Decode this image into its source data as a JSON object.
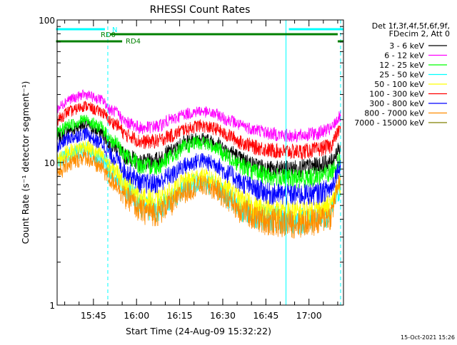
{
  "chart_data": {
    "type": "line",
    "title": "RHESSI Count Rates",
    "xlabel": "Start Time (24-Aug-09 15:32:22)",
    "ylabel": "Count Rate (s⁻¹ detector segment⁻¹)",
    "y_scale": "log",
    "ylim": [
      1,
      100
    ],
    "y_tick_labels": [
      "1",
      "10",
      "100"
    ],
    "x_range": [
      "15:32:22",
      "17:12:00"
    ],
    "x_tick_labels": [
      "15:45",
      "16:00",
      "16:15",
      "16:30",
      "16:45",
      "17:00"
    ],
    "x_ticks": [
      "15:45",
      "16:00",
      "16:15",
      "16:30",
      "16:45",
      "17:00"
    ],
    "grid": false,
    "legend_position": "right",
    "legend_header": [
      "Det 1f,3f,4f,5f,6f,9f,",
      "FDecim 2, Att 0"
    ],
    "series": [
      {
        "name": "3 - 6 keV",
        "color": "#000000",
        "x": [
          "15:32",
          "15:37",
          "15:42",
          "15:47",
          "15:52",
          "15:57",
          "16:02",
          "16:07",
          "16:12",
          "16:17",
          "16:22",
          "16:27",
          "16:32",
          "16:37",
          "16:42",
          "16:47",
          "16:52",
          "16:57",
          "17:02",
          "17:07",
          "17:11"
        ],
        "values": [
          15,
          17,
          18.5,
          16.5,
          13,
          11,
          10,
          10.5,
          12,
          14,
          14.8,
          14,
          12.2,
          10.5,
          9.5,
          9,
          9,
          9.2,
          9.5,
          10,
          12.5
        ]
      },
      {
        "name": "6 - 12 keV",
        "color": "#ff00ff",
        "x": [
          "15:32",
          "15:37",
          "15:42",
          "15:47",
          "15:52",
          "15:57",
          "16:02",
          "16:07",
          "16:12",
          "16:17",
          "16:22",
          "16:27",
          "16:32",
          "16:37",
          "16:42",
          "16:47",
          "16:52",
          "16:57",
          "17:02",
          "17:07",
          "17:11"
        ],
        "values": [
          24,
          28,
          30,
          28,
          23,
          19,
          17.5,
          18,
          20,
          22,
          23,
          22,
          20,
          18,
          17,
          16,
          15.5,
          15.5,
          16,
          17,
          21
        ]
      },
      {
        "name": "12 - 25 keV",
        "color": "#00ff00",
        "x": [
          "15:32",
          "15:37",
          "15:42",
          "15:47",
          "15:52",
          "15:57",
          "16:02",
          "16:07",
          "16:12",
          "16:17",
          "16:22",
          "16:27",
          "16:32",
          "16:37",
          "16:42",
          "16:47",
          "16:52",
          "16:57",
          "17:02",
          "17:07",
          "17:11"
        ],
        "values": [
          16,
          18.5,
          20,
          18,
          14,
          11,
          9.5,
          9.5,
          11,
          13,
          14,
          13,
          11,
          9.5,
          8.5,
          8,
          7.8,
          7.8,
          8,
          8.5,
          10.5
        ]
      },
      {
        "name": "25 - 50 keV",
        "color": "#00ffff",
        "x": [
          "15:32",
          "15:37",
          "15:42",
          "15:47",
          "15:52",
          "15:57",
          "16:02",
          "16:07",
          "16:12",
          "16:17",
          "16:22",
          "16:27",
          "16:32",
          "16:37",
          "16:42",
          "16:47",
          "16:52",
          "16:57",
          "17:02",
          "17:07",
          "17:11"
        ],
        "values": [
          10,
          11.5,
          12.5,
          11,
          8.5,
          6.5,
          5,
          4.8,
          5.6,
          6.8,
          7.4,
          7,
          5.8,
          4.8,
          4.3,
          4.1,
          4,
          4,
          4.1,
          4.4,
          6.5
        ]
      },
      {
        "name": "50 - 100 keV",
        "color": "#ffff00",
        "x": [
          "15:32",
          "15:37",
          "15:42",
          "15:47",
          "15:52",
          "15:57",
          "16:02",
          "16:07",
          "16:12",
          "16:17",
          "16:22",
          "16:27",
          "16:32",
          "16:37",
          "16:42",
          "16:47",
          "16:52",
          "16:57",
          "17:02",
          "17:07",
          "17:11"
        ],
        "values": [
          10.5,
          12,
          13,
          11.5,
          9,
          7,
          5.6,
          5.4,
          6.2,
          7.4,
          8,
          7.6,
          6.4,
          5.4,
          4.8,
          4.6,
          4.5,
          4.5,
          4.6,
          4.9,
          7
        ]
      },
      {
        "name": "100 - 300 keV",
        "color": "#ff0000",
        "x": [
          "15:32",
          "15:37",
          "15:42",
          "15:47",
          "15:52",
          "15:57",
          "16:02",
          "16:07",
          "16:12",
          "16:17",
          "16:22",
          "16:27",
          "16:32",
          "16:37",
          "16:42",
          "16:47",
          "16:52",
          "16:57",
          "17:02",
          "17:07",
          "17:11"
        ],
        "values": [
          20,
          23,
          25,
          23,
          19,
          15.5,
          14,
          14.2,
          15.5,
          17.2,
          18.2,
          17.4,
          15.5,
          13.8,
          12.8,
          12.2,
          12,
          12,
          12.3,
          13,
          17
        ]
      },
      {
        "name": "300 - 800 keV",
        "color": "#0000ff",
        "x": [
          "15:32",
          "15:37",
          "15:42",
          "15:47",
          "15:52",
          "15:57",
          "16:02",
          "16:07",
          "16:12",
          "16:17",
          "16:22",
          "16:27",
          "16:32",
          "16:37",
          "16:42",
          "16:47",
          "16:52",
          "16:57",
          "17:02",
          "17:07",
          "17:11"
        ],
        "values": [
          13,
          15,
          16,
          14,
          11,
          8.5,
          7.2,
          7.2,
          8.2,
          9.6,
          10.4,
          9.9,
          8.4,
          7.2,
          6.5,
          6.1,
          6,
          6,
          6.1,
          6.5,
          9.5
        ]
      },
      {
        "name": "800 - 7000 keV",
        "color": "#ff8c00",
        "x": [
          "15:32",
          "15:37",
          "15:42",
          "15:47",
          "15:52",
          "15:57",
          "16:02",
          "16:07",
          "16:12",
          "16:17",
          "16:22",
          "16:27",
          "16:32",
          "16:37",
          "16:42",
          "16:47",
          "16:52",
          "16:57",
          "17:02",
          "17:07",
          "17:11"
        ],
        "values": [
          8.5,
          10,
          11,
          9.5,
          7.4,
          5.6,
          4.6,
          4.5,
          5.2,
          6.3,
          7,
          6.6,
          5.5,
          4.6,
          4.1,
          3.9,
          3.8,
          3.8,
          3.9,
          4.2,
          7.5
        ]
      },
      {
        "name": "7000 - 15000 keV",
        "color": "#808000",
        "x": [],
        "values": []
      }
    ],
    "annotations": {
      "flags": [
        {
          "label": "RD0",
          "color": "#008000",
          "segments": [
            [
              "15:51",
              "17:10"
            ]
          ]
        },
        {
          "label": "RD4",
          "color": "#008000",
          "segments": [
            [
              "15:32",
              "15:55"
            ],
            [
              "17:10",
              "17:12"
            ]
          ]
        },
        {
          "label": "N",
          "color": "#00ffff",
          "segments": [
            [
              "15:32",
              "15:49"
            ],
            [
              "16:53",
              "17:12"
            ]
          ]
        }
      ],
      "vertical_lines": [
        {
          "time": "15:32:22",
          "style": "solid",
          "color": "#00ffff"
        },
        {
          "time": "15:50",
          "style": "dashed",
          "color": "#00ffff"
        },
        {
          "time": "16:52",
          "style": "solid",
          "color": "#00ffff"
        },
        {
          "time": "17:11",
          "style": "dashed",
          "color": "#00ffff"
        }
      ]
    }
  },
  "footer": {
    "date_stamp": "15-Oct-2021 15:26"
  }
}
